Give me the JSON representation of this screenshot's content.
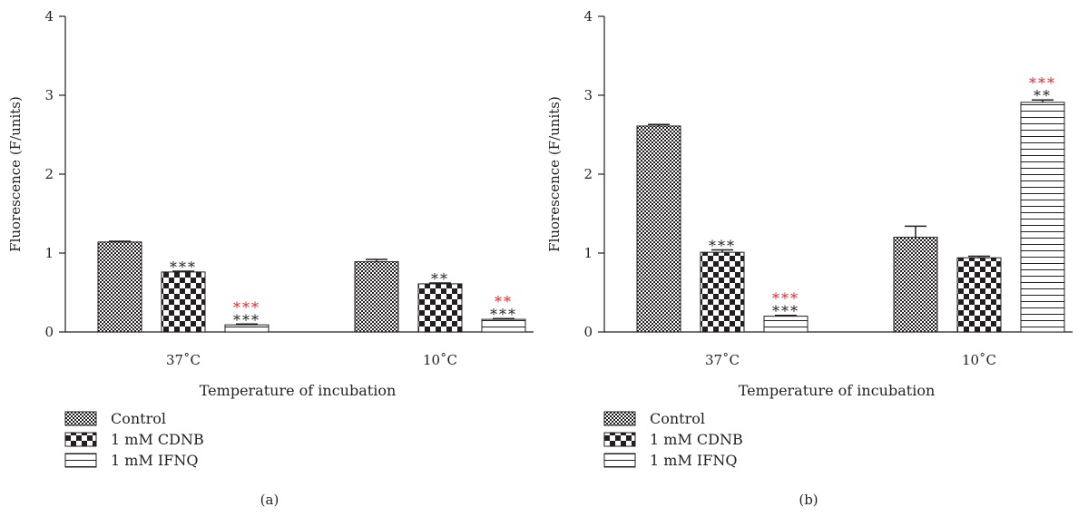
{
  "chart_data": [
    {
      "type": "bar",
      "panel_label": "(a)",
      "categories": [
        "37˚C",
        "10˚C"
      ],
      "xlabel": "Temperature of incubation",
      "ylabel": "Fluorescence (F/units)",
      "ylim": [
        0,
        4
      ],
      "yticks": [
        "0",
        "1",
        "2",
        "3",
        "4"
      ],
      "series": [
        {
          "name": "Control",
          "pattern": "fine-check",
          "values": [
            1.14,
            0.89
          ],
          "errors": [
            0.01,
            0.03
          ],
          "annotations_black": [
            "",
            ""
          ],
          "annotations_red": [
            "",
            ""
          ]
        },
        {
          "name": "1 mM CDNB",
          "pattern": "coarse-check",
          "values": [
            0.76,
            0.61
          ],
          "errors": [
            0.01,
            0.01
          ],
          "annotations_black": [
            "***",
            "**"
          ],
          "annotations_red": [
            "",
            ""
          ]
        },
        {
          "name": "1 mM IFNQ",
          "pattern": "horizontal-lines",
          "values": [
            0.09,
            0.16
          ],
          "errors": [
            0.01,
            0.01
          ],
          "annotations_black": [
            "***",
            "***"
          ],
          "annotations_red": [
            "***",
            "**"
          ]
        }
      ]
    },
    {
      "type": "bar",
      "panel_label": "(b)",
      "categories": [
        "37˚C",
        "10˚C"
      ],
      "xlabel": "Temperature of incubation",
      "ylabel": "Fluorescence (F/units)",
      "ylim": [
        0,
        4
      ],
      "yticks": [
        "0",
        "1",
        "2",
        "3",
        "4"
      ],
      "series": [
        {
          "name": "Control",
          "pattern": "fine-check",
          "values": [
            2.61,
            1.2
          ],
          "errors": [
            0.02,
            0.14
          ],
          "annotations_black": [
            "",
            ""
          ],
          "annotations_red": [
            "",
            ""
          ]
        },
        {
          "name": "1 mM CDNB",
          "pattern": "coarse-check",
          "values": [
            1.01,
            0.94
          ],
          "errors": [
            0.03,
            0.02
          ],
          "annotations_black": [
            "***",
            ""
          ],
          "annotations_red": [
            "",
            ""
          ]
        },
        {
          "name": "1 mM IFNQ",
          "pattern": "horizontal-lines",
          "values": [
            0.2,
            2.91
          ],
          "errors": [
            0.01,
            0.03
          ],
          "annotations_black": [
            "***",
            "**"
          ],
          "annotations_red": [
            "***",
            "***"
          ]
        }
      ]
    }
  ],
  "colors": {
    "axis": "#231f20",
    "bar_fill": "#231f20",
    "significance_red": "#e8242b",
    "background": "#ffffff"
  }
}
